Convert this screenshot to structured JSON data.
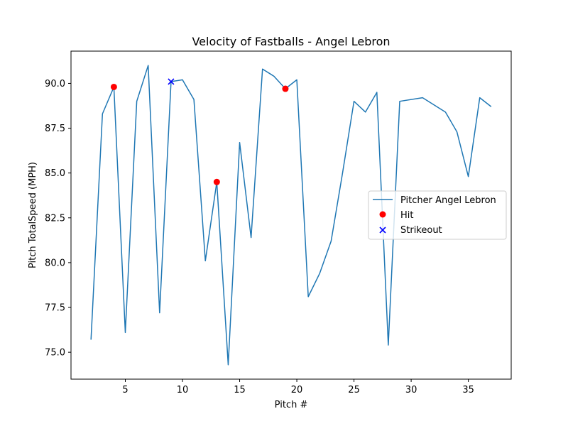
{
  "chart_data": {
    "type": "line",
    "title": "Velocity of Fastballs - Angel Lebron",
    "xlabel": "Pitch #",
    "ylabel": "Pitch TotalSpeed (MPH)",
    "xlim": [
      0.25,
      38.75
    ],
    "ylim": [
      73.5,
      91.8
    ],
    "xticks": [
      5,
      10,
      15,
      20,
      25,
      30,
      35
    ],
    "xtick_labels": [
      "5",
      "10",
      "15",
      "20",
      "25",
      "30",
      "35"
    ],
    "yticks": [
      75.0,
      77.5,
      80.0,
      82.5,
      85.0,
      87.5,
      90.0
    ],
    "ytick_labels": [
      "75.0",
      "77.5",
      "80.0",
      "82.5",
      "85.0",
      "87.5",
      "90.0"
    ],
    "grid": false,
    "legend_position": "center-right",
    "series": [
      {
        "name": "Pitcher Angel Lebron",
        "kind": "line",
        "color": "#1f77b4",
        "x": [
          2,
          3,
          4,
          5,
          6,
          7,
          8,
          9,
          10,
          11,
          12,
          13,
          14,
          15,
          16,
          17,
          18,
          19,
          20,
          21,
          22,
          23,
          24,
          25,
          26,
          27,
          28,
          29,
          31,
          33,
          34,
          35,
          36,
          37
        ],
        "y": [
          75.7,
          88.3,
          89.8,
          76.1,
          89.0,
          91.0,
          77.2,
          90.1,
          90.2,
          89.1,
          80.1,
          84.5,
          74.3,
          86.7,
          81.4,
          90.8,
          90.4,
          89.7,
          90.2,
          78.1,
          79.4,
          81.2,
          85.0,
          89.0,
          88.4,
          89.5,
          75.4,
          89.0,
          89.2,
          88.4,
          87.3,
          84.8,
          89.2,
          88.7
        ]
      },
      {
        "name": "Hit",
        "kind": "scatter",
        "marker": "circle",
        "color": "#ff0000",
        "x": [
          4,
          13,
          19
        ],
        "y": [
          89.8,
          84.5,
          89.7
        ]
      },
      {
        "name": "Strikeout",
        "kind": "scatter",
        "marker": "x",
        "color": "#0000ff",
        "x": [
          9
        ],
        "y": [
          90.1
        ]
      }
    ]
  }
}
